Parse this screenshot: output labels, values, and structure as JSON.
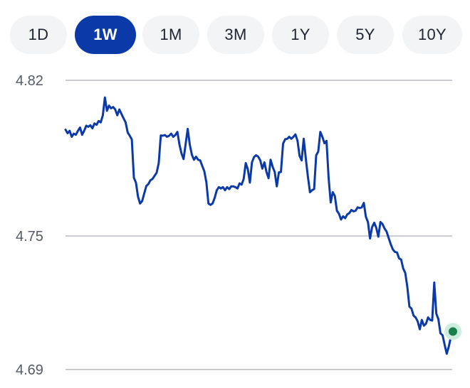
{
  "range_selector": {
    "buttons": [
      {
        "label": "1D",
        "active": false
      },
      {
        "label": "1W",
        "active": true
      },
      {
        "label": "1M",
        "active": false
      },
      {
        "label": "3M",
        "active": false
      },
      {
        "label": "1Y",
        "active": false
      },
      {
        "label": "5Y",
        "active": false
      },
      {
        "label": "10Y",
        "active": false
      }
    ]
  },
  "colors": {
    "line": "#0b3aa8",
    "active_button": "#0b3aa8",
    "button_bg": "#f3f4f6",
    "grid": "#c8cacd",
    "end_marker": "#1a7f4b",
    "end_marker_halo": "#cdeede"
  },
  "chart_data": {
    "type": "line",
    "title": "",
    "xlabel": "",
    "ylabel": "",
    "ylim": [
      4.69,
      4.82
    ],
    "yticks": [
      "4.82",
      "4.75",
      "4.69"
    ],
    "ytick_values": [
      4.82,
      4.75,
      4.69
    ],
    "grid": true,
    "end_marker": true,
    "series": [
      {
        "values": [
          4.7978,
          4.7962,
          4.7973,
          4.7946,
          4.796,
          4.7955,
          4.7973,
          4.7988,
          4.7955,
          4.7973,
          4.7996,
          4.7991,
          4.7998,
          4.7984,
          4.8006,
          4.8,
          4.8017,
          4.8011,
          4.8043,
          4.8123,
          4.8063,
          4.8086,
          4.8074,
          4.808,
          4.8069,
          4.8043,
          4.8069,
          4.8049,
          4.8029,
          4.8011,
          4.7966,
          4.7951,
          4.7934,
          4.7762,
          4.774,
          4.7677,
          4.7646,
          4.7657,
          4.7691,
          4.7725,
          4.7734,
          4.7751,
          4.7757,
          4.7771,
          4.7785,
          4.7828,
          4.7952,
          4.7951,
          4.7954,
          4.7946,
          4.7951,
          4.796,
          4.7946,
          4.7954,
          4.7968,
          4.7911,
          4.7871,
          4.7846,
          4.7914,
          4.7982,
          4.7911,
          4.7865,
          4.7843,
          4.7857,
          4.7843,
          4.784,
          4.7815,
          4.7791,
          4.7742,
          4.7646,
          4.764,
          4.7646,
          4.7672,
          4.7706,
          4.772,
          4.7714,
          4.772,
          4.7706,
          4.772,
          4.7711,
          4.7723,
          4.7723,
          4.772,
          4.7714,
          4.7737,
          4.7731,
          4.7757,
          4.7828,
          4.78,
          4.774,
          4.7831,
          4.7855,
          4.7863,
          4.7857,
          4.784,
          4.7803,
          4.7831,
          4.7788,
          4.776,
          4.7843,
          4.7811,
          4.7788,
          4.7723,
          4.7786,
          4.7788,
          4.7915,
          4.7935,
          4.7937,
          4.7946,
          4.7937,
          4.7946,
          4.7957,
          4.7928,
          4.786,
          4.784,
          4.7937,
          4.7846,
          4.7766,
          4.7697,
          4.7706,
          4.7711,
          4.7863,
          4.788,
          4.7968,
          4.7946,
          4.7917,
          4.7928,
          4.776,
          4.7651,
          4.7697,
          4.768,
          4.7614,
          4.76,
          4.7574,
          4.7589,
          4.758,
          4.7597,
          4.7603,
          4.7617,
          4.7611,
          4.7614,
          4.7629,
          4.7626,
          4.7629,
          4.7649,
          4.7586,
          4.7563,
          4.7489,
          4.754,
          4.756,
          4.7537,
          4.7497,
          4.7563,
          4.7554,
          4.7534,
          4.752,
          4.7491,
          4.7463,
          4.744,
          4.7429,
          4.7426,
          4.74,
          4.7394,
          4.7354,
          4.7334,
          4.7271,
          4.7183,
          4.7174,
          4.7143,
          4.7134,
          4.7117,
          4.7081,
          4.7123,
          4.7097,
          4.7106,
          4.7134,
          4.7123,
          4.712,
          4.7291,
          4.7151,
          4.7126,
          4.7063,
          4.7054,
          4.7011,
          4.6971,
          4.7003,
          4.7046,
          4.7071
        ]
      }
    ]
  }
}
